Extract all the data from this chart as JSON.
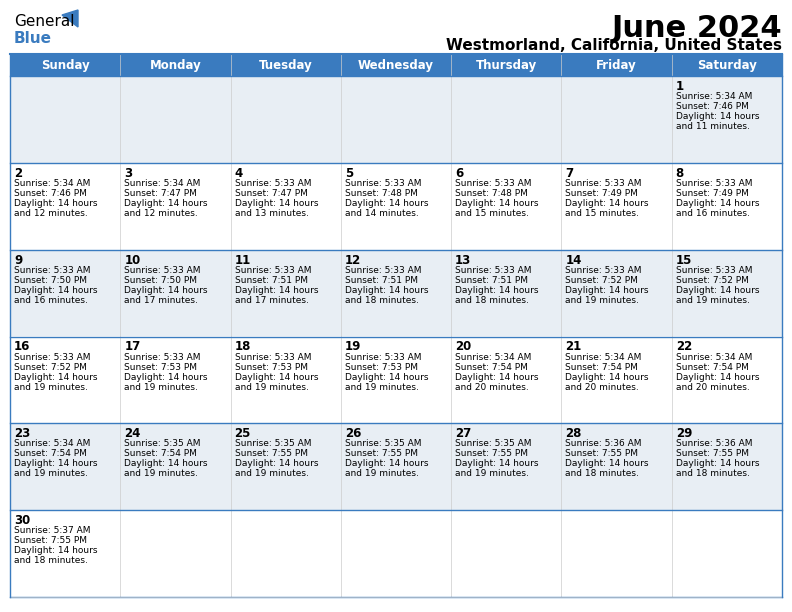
{
  "title": "June 2024",
  "subtitle": "Westmorland, California, United States",
  "header_bg": "#3a7bbf",
  "header_text": "#ffffff",
  "day_names": [
    "Sunday",
    "Monday",
    "Tuesday",
    "Wednesday",
    "Thursday",
    "Friday",
    "Saturday"
  ],
  "alt_row_bg": "#e8eef4",
  "normal_row_bg": "#ffffff",
  "border_color": "#3a7bbf",
  "grid_color": "#cccccc",
  "text_color": "#000000",
  "day_num_color": "#000000",
  "days": [
    {
      "day": 1,
      "col": 6,
      "row": 0,
      "sunrise": "5:34 AM",
      "sunset": "7:46 PM",
      "daylight": "14 hours and 11 minutes."
    },
    {
      "day": 2,
      "col": 0,
      "row": 1,
      "sunrise": "5:34 AM",
      "sunset": "7:46 PM",
      "daylight": "14 hours and 12 minutes."
    },
    {
      "day": 3,
      "col": 1,
      "row": 1,
      "sunrise": "5:34 AM",
      "sunset": "7:47 PM",
      "daylight": "14 hours and 12 minutes."
    },
    {
      "day": 4,
      "col": 2,
      "row": 1,
      "sunrise": "5:33 AM",
      "sunset": "7:47 PM",
      "daylight": "14 hours and 13 minutes."
    },
    {
      "day": 5,
      "col": 3,
      "row": 1,
      "sunrise": "5:33 AM",
      "sunset": "7:48 PM",
      "daylight": "14 hours and 14 minutes."
    },
    {
      "day": 6,
      "col": 4,
      "row": 1,
      "sunrise": "5:33 AM",
      "sunset": "7:48 PM",
      "daylight": "14 hours and 15 minutes."
    },
    {
      "day": 7,
      "col": 5,
      "row": 1,
      "sunrise": "5:33 AM",
      "sunset": "7:49 PM",
      "daylight": "14 hours and 15 minutes."
    },
    {
      "day": 8,
      "col": 6,
      "row": 1,
      "sunrise": "5:33 AM",
      "sunset": "7:49 PM",
      "daylight": "14 hours and 16 minutes."
    },
    {
      "day": 9,
      "col": 0,
      "row": 2,
      "sunrise": "5:33 AM",
      "sunset": "7:50 PM",
      "daylight": "14 hours and 16 minutes."
    },
    {
      "day": 10,
      "col": 1,
      "row": 2,
      "sunrise": "5:33 AM",
      "sunset": "7:50 PM",
      "daylight": "14 hours and 17 minutes."
    },
    {
      "day": 11,
      "col": 2,
      "row": 2,
      "sunrise": "5:33 AM",
      "sunset": "7:51 PM",
      "daylight": "14 hours and 17 minutes."
    },
    {
      "day": 12,
      "col": 3,
      "row": 2,
      "sunrise": "5:33 AM",
      "sunset": "7:51 PM",
      "daylight": "14 hours and 18 minutes."
    },
    {
      "day": 13,
      "col": 4,
      "row": 2,
      "sunrise": "5:33 AM",
      "sunset": "7:51 PM",
      "daylight": "14 hours and 18 minutes."
    },
    {
      "day": 14,
      "col": 5,
      "row": 2,
      "sunrise": "5:33 AM",
      "sunset": "7:52 PM",
      "daylight": "14 hours and 19 minutes."
    },
    {
      "day": 15,
      "col": 6,
      "row": 2,
      "sunrise": "5:33 AM",
      "sunset": "7:52 PM",
      "daylight": "14 hours and 19 minutes."
    },
    {
      "day": 16,
      "col": 0,
      "row": 3,
      "sunrise": "5:33 AM",
      "sunset": "7:52 PM",
      "daylight": "14 hours and 19 minutes."
    },
    {
      "day": 17,
      "col": 1,
      "row": 3,
      "sunrise": "5:33 AM",
      "sunset": "7:53 PM",
      "daylight": "14 hours and 19 minutes."
    },
    {
      "day": 18,
      "col": 2,
      "row": 3,
      "sunrise": "5:33 AM",
      "sunset": "7:53 PM",
      "daylight": "14 hours and 19 minutes."
    },
    {
      "day": 19,
      "col": 3,
      "row": 3,
      "sunrise": "5:33 AM",
      "sunset": "7:53 PM",
      "daylight": "14 hours and 19 minutes."
    },
    {
      "day": 20,
      "col": 4,
      "row": 3,
      "sunrise": "5:34 AM",
      "sunset": "7:54 PM",
      "daylight": "14 hours and 20 minutes."
    },
    {
      "day": 21,
      "col": 5,
      "row": 3,
      "sunrise": "5:34 AM",
      "sunset": "7:54 PM",
      "daylight": "14 hours and 20 minutes."
    },
    {
      "day": 22,
      "col": 6,
      "row": 3,
      "sunrise": "5:34 AM",
      "sunset": "7:54 PM",
      "daylight": "14 hours and 20 minutes."
    },
    {
      "day": 23,
      "col": 0,
      "row": 4,
      "sunrise": "5:34 AM",
      "sunset": "7:54 PM",
      "daylight": "14 hours and 19 minutes."
    },
    {
      "day": 24,
      "col": 1,
      "row": 4,
      "sunrise": "5:35 AM",
      "sunset": "7:54 PM",
      "daylight": "14 hours and 19 minutes."
    },
    {
      "day": 25,
      "col": 2,
      "row": 4,
      "sunrise": "5:35 AM",
      "sunset": "7:55 PM",
      "daylight": "14 hours and 19 minutes."
    },
    {
      "day": 26,
      "col": 3,
      "row": 4,
      "sunrise": "5:35 AM",
      "sunset": "7:55 PM",
      "daylight": "14 hours and 19 minutes."
    },
    {
      "day": 27,
      "col": 4,
      "row": 4,
      "sunrise": "5:35 AM",
      "sunset": "7:55 PM",
      "daylight": "14 hours and 19 minutes."
    },
    {
      "day": 28,
      "col": 5,
      "row": 4,
      "sunrise": "5:36 AM",
      "sunset": "7:55 PM",
      "daylight": "14 hours and 18 minutes."
    },
    {
      "day": 29,
      "col": 6,
      "row": 4,
      "sunrise": "5:36 AM",
      "sunset": "7:55 PM",
      "daylight": "14 hours and 18 minutes."
    },
    {
      "day": 30,
      "col": 0,
      "row": 5,
      "sunrise": "5:37 AM",
      "sunset": "7:55 PM",
      "daylight": "14 hours and 18 minutes."
    }
  ]
}
